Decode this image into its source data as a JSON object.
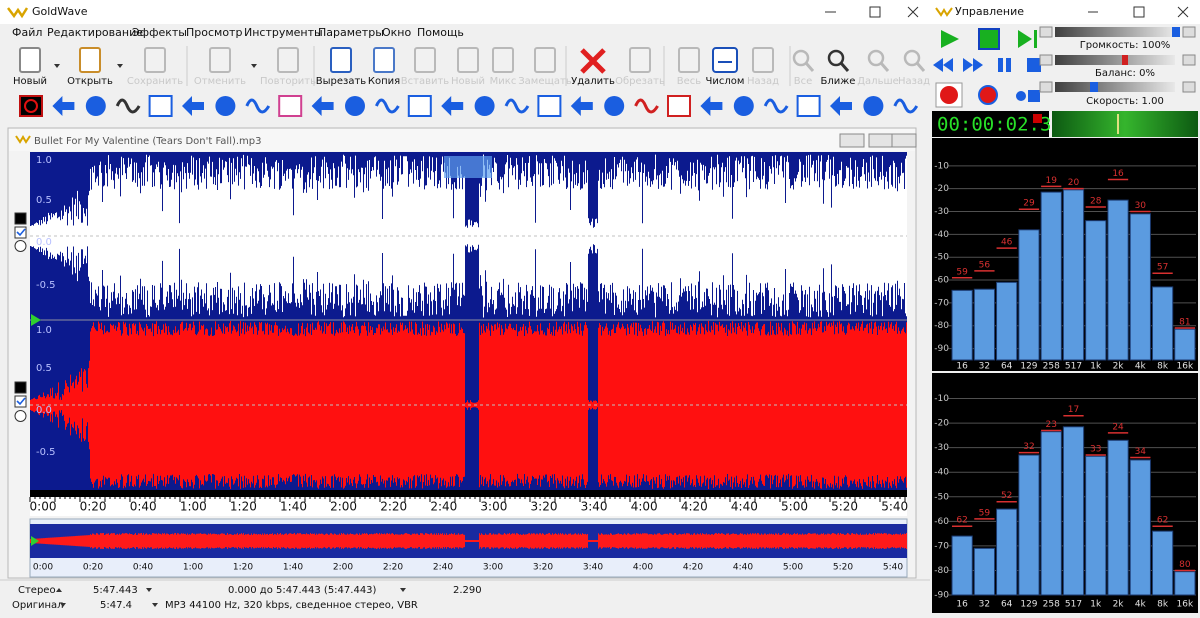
{
  "app": {
    "title": "GoldWave",
    "menu": [
      "Файл",
      "Редактирование",
      "Эффекты",
      "Просмотр",
      "Инструменты",
      "Параметры",
      "Окно",
      "Помощь"
    ]
  },
  "toolbar": [
    {
      "label": "Новый",
      "enabled": true
    },
    {
      "label": "Открыть",
      "enabled": true
    },
    {
      "label": "Сохранить",
      "enabled": false
    },
    {
      "label": "Отменить",
      "enabled": false
    },
    {
      "label": "Повторить",
      "enabled": false
    },
    {
      "label": "Вырезать",
      "enabled": true
    },
    {
      "label": "Копия",
      "enabled": true
    },
    {
      "label": "Вставить",
      "enabled": false
    },
    {
      "label": "Новый",
      "enabled": false
    },
    {
      "label": "Микс",
      "enabled": false
    },
    {
      "label": "Замещать",
      "enabled": false
    },
    {
      "label": "Удалить",
      "enabled": true
    },
    {
      "label": "Обрезать",
      "enabled": false
    },
    {
      "label": "Весь",
      "enabled": false
    },
    {
      "label": "Числом",
      "enabled": true
    },
    {
      "label": "Назад",
      "enabled": false
    },
    {
      "label": "Все",
      "enabled": false
    },
    {
      "label": "Ближе",
      "enabled": true
    },
    {
      "label": "Дальше",
      "enabled": false
    },
    {
      "label": "Назад",
      "enabled": false
    }
  ],
  "sound_window": {
    "title": "Bullet For My Valentine (Tears Don't Fall).mp3",
    "amplitude_labels": [
      "1.0",
      "0.5",
      "0.0",
      "-0.5"
    ],
    "time_labels": [
      "0:00",
      "0:20",
      "0:40",
      "1:00",
      "1:20",
      "1:40",
      "2:00",
      "2:20",
      "2:40",
      "3:00",
      "3:20",
      "3:40",
      "4:00",
      "4:20",
      "4:40",
      "5:00",
      "5:20",
      "5:40"
    ]
  },
  "status": {
    "row1": [
      "Стерео",
      "5:47.443",
      "0.000 до 5:47.443 (5:47.443)",
      "2.290"
    ],
    "row2": [
      "Оригинал",
      "5:47.4",
      "MP3 44100 Hz, 320 kbps, сведенное стерео, VBR"
    ]
  },
  "control": {
    "title": "Управление",
    "volume": "Громкость: 100%",
    "balance": "Баланс: 0%",
    "speed": "Скорость: 1.00",
    "time": "00:00:02.3"
  },
  "chart_data": [
    {
      "type": "bar",
      "categories": [
        "16",
        "32",
        "64",
        "129",
        "258",
        "517",
        "1k",
        "2k",
        "4k",
        "8k",
        "16k"
      ],
      "ylim": [
        -95,
        0
      ],
      "yticks": [
        -10,
        -20,
        -30,
        -40,
        -50,
        -60,
        -70,
        -80,
        -90
      ],
      "grid": true,
      "series": [
        {
          "color": "#5b9be0",
          "values": [
            -64.5,
            -64,
            -61,
            -38,
            -21.5,
            -20.5,
            -34,
            -25,
            -31,
            -63,
            -81.5
          ]
        },
        {
          "color": "#d83030",
          "values": [
            -59,
            -56,
            -46,
            -29,
            -19,
            -20,
            -28,
            -16,
            -30,
            -57,
            -81
          ],
          "value_labels": [
            "59",
            "56",
            "46",
            "29",
            "19",
            "20",
            "28",
            "16",
            "30",
            "57",
            "81"
          ]
        }
      ]
    },
    {
      "type": "bar",
      "categories": [
        "16",
        "32",
        "64",
        "129",
        "258",
        "517",
        "1k",
        "2k",
        "4k",
        "8k",
        "16k"
      ],
      "ylim": [
        -90,
        0
      ],
      "yticks": [
        -10,
        -20,
        -30,
        -40,
        -50,
        -60,
        -70,
        -80,
        -90
      ],
      "grid": true,
      "series": [
        {
          "color": "#5b9be0",
          "values": [
            -66,
            -71,
            -55,
            -33,
            -23.5,
            -21.5,
            -33.5,
            -27,
            -35,
            -64,
            -80.5
          ]
        },
        {
          "color": "#d83030",
          "values": [
            -62,
            -59,
            -52,
            -32,
            -23,
            -17,
            -33,
            -24,
            -34,
            -62,
            -80
          ],
          "value_labels": [
            "62",
            "59",
            "52",
            "32",
            "23",
            "17",
            "33",
            "24",
            "34",
            "62",
            "80"
          ]
        }
      ]
    }
  ]
}
